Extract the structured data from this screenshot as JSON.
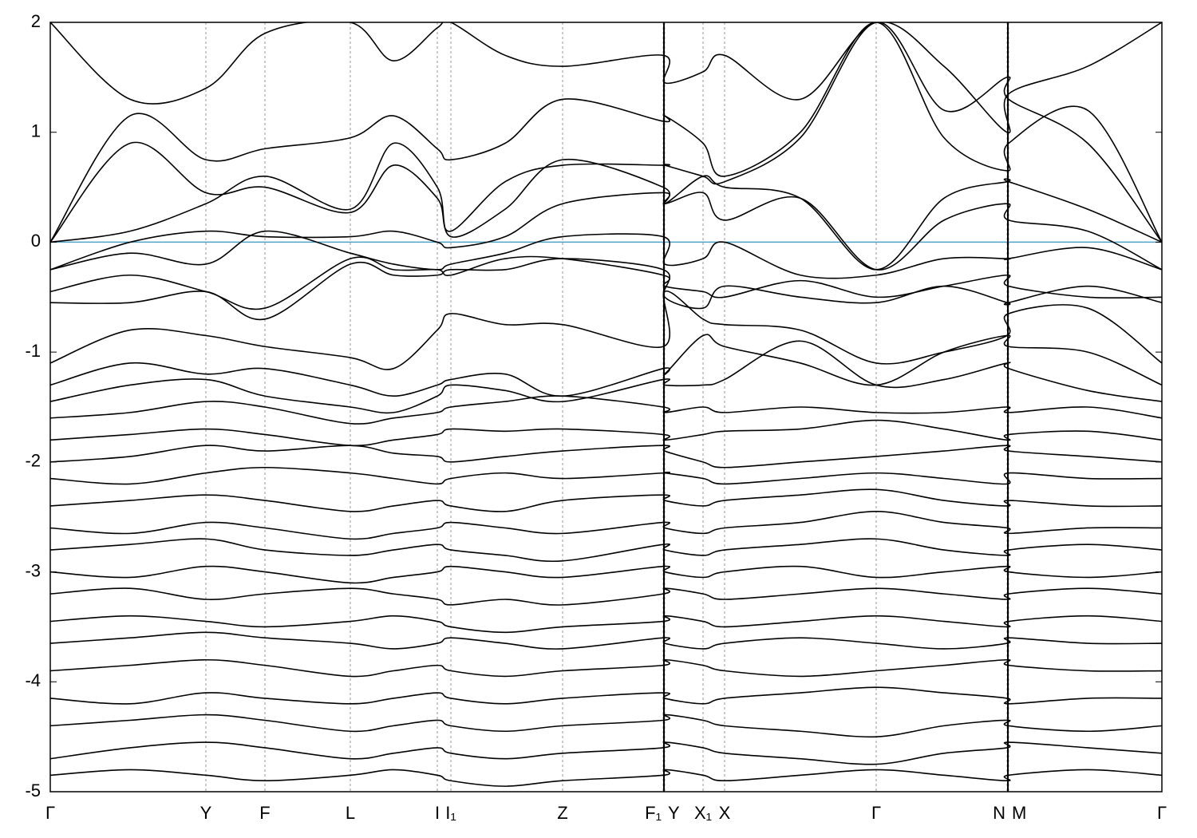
{
  "chart_data": {
    "type": "line",
    "color": "#000000",
    "fermi_color": "#4fa3c7",
    "fermi_level": 0,
    "xlim": [
      0,
      1393
    ],
    "ylim": [
      -5,
      2
    ],
    "yticks": [
      -5,
      -4,
      -3,
      -2,
      -1,
      0,
      1,
      2
    ],
    "grid": true,
    "xticks": [
      {
        "value": 0,
        "label": "Γ"
      },
      {
        "value": 195,
        "label": "Y"
      },
      {
        "value": 269,
        "label": "F"
      },
      {
        "value": 376,
        "label": "L"
      },
      {
        "value": 485,
        "label": "I"
      },
      {
        "value": 502,
        "label": "I₁"
      },
      {
        "value": 642,
        "label": "Z"
      },
      {
        "value": 768,
        "label": "F₁"
      },
      {
        "value": 770,
        "label": "Y"
      },
      {
        "value": 818,
        "label": "X₁"
      },
      {
        "value": 845,
        "label": "X"
      },
      {
        "value": 1035,
        "label": "Γ"
      },
      {
        "value": 1199,
        "label": "N"
      },
      {
        "value": 1201,
        "label": "M"
      },
      {
        "value": 1393,
        "label": "Γ"
      }
    ],
    "x": [
      0,
      100,
      195,
      269,
      376,
      430,
      485,
      502,
      570,
      642,
      768,
      770,
      818,
      845,
      940,
      1035,
      1120,
      1199,
      1201,
      1300,
      1393
    ],
    "series": [
      {
        "values": [
          2.0,
          1.3,
          1.4,
          1.9,
          2.0,
          1.65,
          1.95,
          2.0,
          1.7,
          1.6,
          1.7,
          1.45,
          1.55,
          1.7,
          1.3,
          2.0,
          1.6,
          1.0,
          1.35,
          1.6,
          2.0
        ]
      },
      {
        "values": [
          0.0,
          1.15,
          0.75,
          0.85,
          0.95,
          1.15,
          0.85,
          0.75,
          0.9,
          1.3,
          1.1,
          1.15,
          0.9,
          0.6,
          1.0,
          2.0,
          0.95,
          0.65,
          0.9,
          1.2,
          0.0
        ]
      },
      {
        "values": [
          0,
          0.9,
          0.45,
          0.5,
          0.27,
          0.7,
          0.4,
          0.1,
          0.55,
          0.7,
          0.7,
          0.7,
          0.6,
          0.55,
          0.95,
          2.0,
          1.2,
          1.5,
          1.3,
          0.9,
          0.0
        ]
      },
      {
        "values": [
          0,
          0.1,
          0.35,
          0.6,
          0.3,
          0.9,
          0.5,
          0.05,
          0.3,
          0.75,
          0.5,
          0.35,
          0.6,
          0.5,
          0.4,
          -0.25,
          0.4,
          0.55,
          0.55,
          0.3,
          0.0
        ]
      },
      {
        "values": [
          -0.25,
          0,
          0.1,
          0.05,
          0.05,
          0.1,
          0,
          -0.05,
          0.05,
          0.35,
          0.45,
          0.35,
          0.45,
          0.2,
          0.4,
          -0.25,
          0.2,
          0.35,
          0.2,
          0.1,
          -0.25
        ]
      },
      {
        "values": [
          -0.25,
          -0.1,
          -0.2,
          0.1,
          -0.1,
          -0.2,
          -0.25,
          -0.2,
          -0.1,
          0.05,
          0.05,
          -0.2,
          -0.15,
          0,
          -0.3,
          -0.3,
          -0.15,
          -0.15,
          -0.15,
          -0.05,
          -0.25
        ]
      },
      {
        "values": [
          -0.45,
          -0.3,
          -0.45,
          -0.6,
          -0.15,
          -0.25,
          -0.25,
          -0.3,
          -0.15,
          -0.15,
          -0.3,
          -0.4,
          -0.45,
          -0.5,
          -0.35,
          -0.5,
          -0.4,
          -0.3,
          -0.4,
          -0.5,
          -0.5
        ]
      },
      {
        "values": [
          -0.55,
          -0.55,
          -0.45,
          -0.7,
          -0.2,
          -0.3,
          -0.3,
          -0.25,
          -0.25,
          -0.15,
          -0.25,
          -0.5,
          -0.6,
          -0.4,
          -0.5,
          -0.55,
          -0.4,
          -0.55,
          -0.55,
          -0.4,
          -0.55
        ]
      },
      {
        "values": [
          -1.1,
          -0.8,
          -0.85,
          -0.95,
          -1.05,
          -1.15,
          -0.8,
          -0.65,
          -0.75,
          -0.75,
          -0.95,
          -0.45,
          -0.7,
          -0.75,
          -0.8,
          -1.1,
          -1.0,
          -0.85,
          -0.65,
          -0.6,
          -1.1
        ]
      },
      {
        "values": [
          -1.3,
          -1.1,
          -1.2,
          -1.15,
          -1.3,
          -1.4,
          -1.3,
          -1.25,
          -1.2,
          -1.4,
          -1.15,
          -1.2,
          -0.85,
          -0.95,
          -1.1,
          -1.3,
          -1.0,
          -0.85,
          -0.95,
          -1.0,
          -1.3
        ]
      },
      {
        "values": [
          -1.45,
          -1.3,
          -1.25,
          -1.4,
          -1.5,
          -1.55,
          -1.4,
          -1.3,
          -1.35,
          -1.45,
          -1.25,
          -1.3,
          -1.3,
          -1.25,
          -0.9,
          -1.3,
          -1.25,
          -1.1,
          -1.15,
          -1.35,
          -1.45
        ]
      },
      {
        "values": [
          -1.6,
          -1.55,
          -1.45,
          -1.5,
          -1.65,
          -1.6,
          -1.55,
          -1.5,
          -1.45,
          -1.4,
          -1.5,
          -1.55,
          -1.5,
          -1.55,
          -1.5,
          -1.55,
          -1.55,
          -1.5,
          -1.55,
          -1.5,
          -1.6
        ]
      },
      {
        "values": [
          -1.8,
          -1.75,
          -1.7,
          -1.75,
          -1.85,
          -1.8,
          -1.75,
          -1.7,
          -1.72,
          -1.7,
          -1.75,
          -1.8,
          -1.75,
          -1.72,
          -1.7,
          -1.62,
          -1.7,
          -1.8,
          -1.75,
          -1.72,
          -1.8
        ]
      },
      {
        "values": [
          -2.0,
          -1.95,
          -1.85,
          -1.9,
          -1.85,
          -1.92,
          -1.95,
          -2.0,
          -1.95,
          -1.9,
          -1.85,
          -1.9,
          -2.0,
          -2.05,
          -2.0,
          -1.95,
          -1.9,
          -1.85,
          -1.9,
          -1.95,
          -2.0
        ]
      },
      {
        "values": [
          -2.15,
          -2.2,
          -2.1,
          -2.05,
          -2.1,
          -2.15,
          -2.2,
          -2.15,
          -2.1,
          -2.15,
          -2.1,
          -2.1,
          -2.15,
          -2.2,
          -2.15,
          -2.1,
          -2.15,
          -2.2,
          -2.1,
          -2.15,
          -2.15
        ]
      },
      {
        "values": [
          -2.4,
          -2.35,
          -2.3,
          -2.35,
          -2.45,
          -2.4,
          -2.35,
          -2.4,
          -2.45,
          -2.35,
          -2.3,
          -2.35,
          -2.4,
          -2.35,
          -2.3,
          -2.25,
          -2.35,
          -2.4,
          -2.35,
          -2.4,
          -2.4
        ]
      },
      {
        "values": [
          -2.6,
          -2.65,
          -2.55,
          -2.6,
          -2.7,
          -2.65,
          -2.6,
          -2.55,
          -2.6,
          -2.65,
          -2.55,
          -2.6,
          -2.65,
          -2.6,
          -2.55,
          -2.45,
          -2.55,
          -2.6,
          -2.65,
          -2.6,
          -2.6
        ]
      },
      {
        "values": [
          -2.8,
          -2.75,
          -2.7,
          -2.8,
          -2.85,
          -2.8,
          -2.75,
          -2.8,
          -2.85,
          -2.9,
          -2.75,
          -2.8,
          -2.85,
          -2.8,
          -2.75,
          -2.7,
          -2.8,
          -2.85,
          -2.8,
          -2.75,
          -2.8
        ]
      },
      {
        "values": [
          -3.0,
          -3.05,
          -2.95,
          -3.0,
          -3.1,
          -3.05,
          -3.0,
          -2.95,
          -3.0,
          -3.05,
          -2.95,
          -3.0,
          -3.05,
          -3.0,
          -2.95,
          -3.05,
          -3.0,
          -2.95,
          -3.0,
          -3.05,
          -3.0
        ]
      },
      {
        "values": [
          -3.2,
          -3.15,
          -3.25,
          -3.2,
          -3.15,
          -3.2,
          -3.25,
          -3.3,
          -3.25,
          -3.3,
          -3.2,
          -3.15,
          -3.2,
          -3.25,
          -3.2,
          -3.15,
          -3.2,
          -3.25,
          -3.2,
          -3.15,
          -3.2
        ]
      },
      {
        "values": [
          -3.45,
          -3.4,
          -3.45,
          -3.5,
          -3.45,
          -3.4,
          -3.45,
          -3.5,
          -3.55,
          -3.5,
          -3.45,
          -3.4,
          -3.45,
          -3.5,
          -3.45,
          -3.4,
          -3.45,
          -3.5,
          -3.45,
          -3.4,
          -3.45
        ]
      },
      {
        "values": [
          -3.65,
          -3.6,
          -3.55,
          -3.6,
          -3.65,
          -3.7,
          -3.65,
          -3.6,
          -3.65,
          -3.7,
          -3.6,
          -3.65,
          -3.7,
          -3.65,
          -3.6,
          -3.65,
          -3.7,
          -3.65,
          -3.6,
          -3.65,
          -3.65
        ]
      },
      {
        "values": [
          -3.9,
          -3.85,
          -3.8,
          -3.85,
          -3.95,
          -3.9,
          -3.85,
          -3.9,
          -3.95,
          -3.9,
          -3.85,
          -3.8,
          -3.85,
          -3.9,
          -3.95,
          -3.9,
          -3.85,
          -3.8,
          -3.85,
          -3.9,
          -3.9
        ]
      },
      {
        "values": [
          -4.15,
          -4.2,
          -4.1,
          -4.15,
          -4.2,
          -4.15,
          -4.1,
          -4.15,
          -4.2,
          -4.15,
          -4.1,
          -4.15,
          -4.2,
          -4.15,
          -4.1,
          -4.05,
          -4.1,
          -4.15,
          -4.2,
          -4.15,
          -4.15
        ]
      },
      {
        "values": [
          -4.4,
          -4.35,
          -4.3,
          -4.35,
          -4.45,
          -4.4,
          -4.35,
          -4.4,
          -4.45,
          -4.4,
          -4.35,
          -4.3,
          -4.35,
          -4.4,
          -4.45,
          -4.5,
          -4.4,
          -4.35,
          -4.4,
          -4.45,
          -4.4
        ]
      },
      {
        "values": [
          -4.7,
          -4.6,
          -4.55,
          -4.6,
          -4.7,
          -4.65,
          -4.6,
          -4.65,
          -4.7,
          -4.65,
          -4.6,
          -4.55,
          -4.6,
          -4.65,
          -4.7,
          -4.75,
          -4.65,
          -4.6,
          -4.55,
          -4.6,
          -4.65
        ]
      },
      {
        "values": [
          -4.85,
          -4.8,
          -4.85,
          -4.9,
          -4.85,
          -4.8,
          -4.85,
          -4.9,
          -4.95,
          -4.9,
          -4.85,
          -4.8,
          -4.85,
          -4.9,
          -4.85,
          -4.8,
          -4.85,
          -4.9,
          -4.85,
          -4.8,
          -4.85
        ]
      }
    ]
  }
}
